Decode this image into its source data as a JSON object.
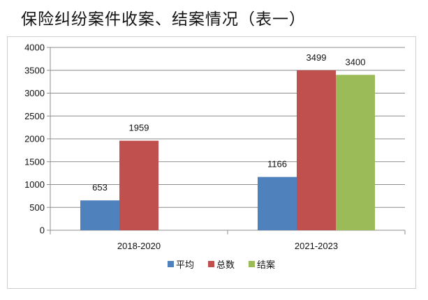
{
  "title": "保险纠纷案件收案、结案情况（表一）",
  "chart_data": {
    "type": "bar",
    "title": "保险纠纷案件收案、结案情况（表一）",
    "categories": [
      "2018-2020",
      "2021-2023"
    ],
    "series": [
      {
        "name": "平均",
        "color": "#4f81bd",
        "values": [
          653,
          1166
        ]
      },
      {
        "name": "总数",
        "color": "#c0504d",
        "values": [
          1959,
          3499
        ]
      },
      {
        "name": "结案",
        "color": "#9bbb59",
        "values": [
          null,
          3400
        ]
      }
    ],
    "ylim": [
      0,
      4000
    ],
    "yticks": [
      0,
      500,
      1000,
      1500,
      2000,
      2500,
      3000,
      3500,
      4000
    ],
    "grid": true,
    "legend_position": "bottom"
  }
}
